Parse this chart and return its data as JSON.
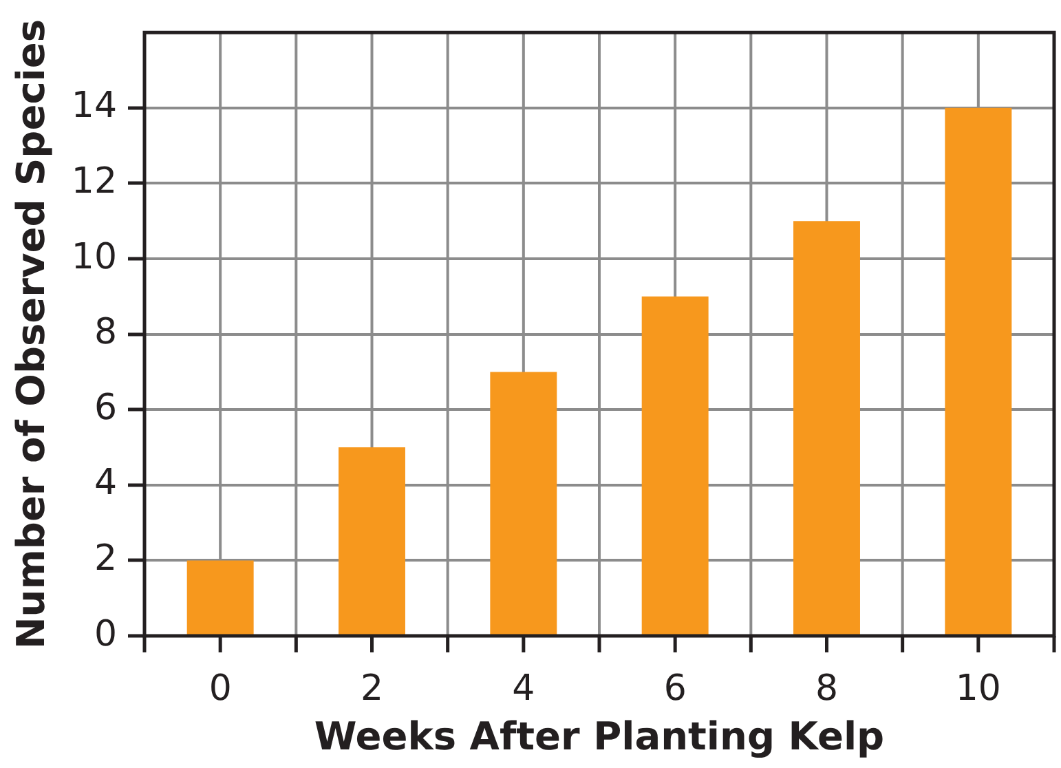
{
  "chart_data": {
    "type": "bar",
    "xlabel": "Weeks After Planting Kelp",
    "ylabel": "Number of Observed Species",
    "categories": [
      "0",
      "2",
      "4",
      "6",
      "8",
      "10"
    ],
    "values": [
      2,
      5,
      7,
      9,
      11,
      14
    ],
    "color": "#f7981d",
    "ylim": [
      0,
      16
    ],
    "yticks": [
      0,
      2,
      4,
      6,
      8,
      10,
      12,
      14
    ],
    "grid": true
  }
}
